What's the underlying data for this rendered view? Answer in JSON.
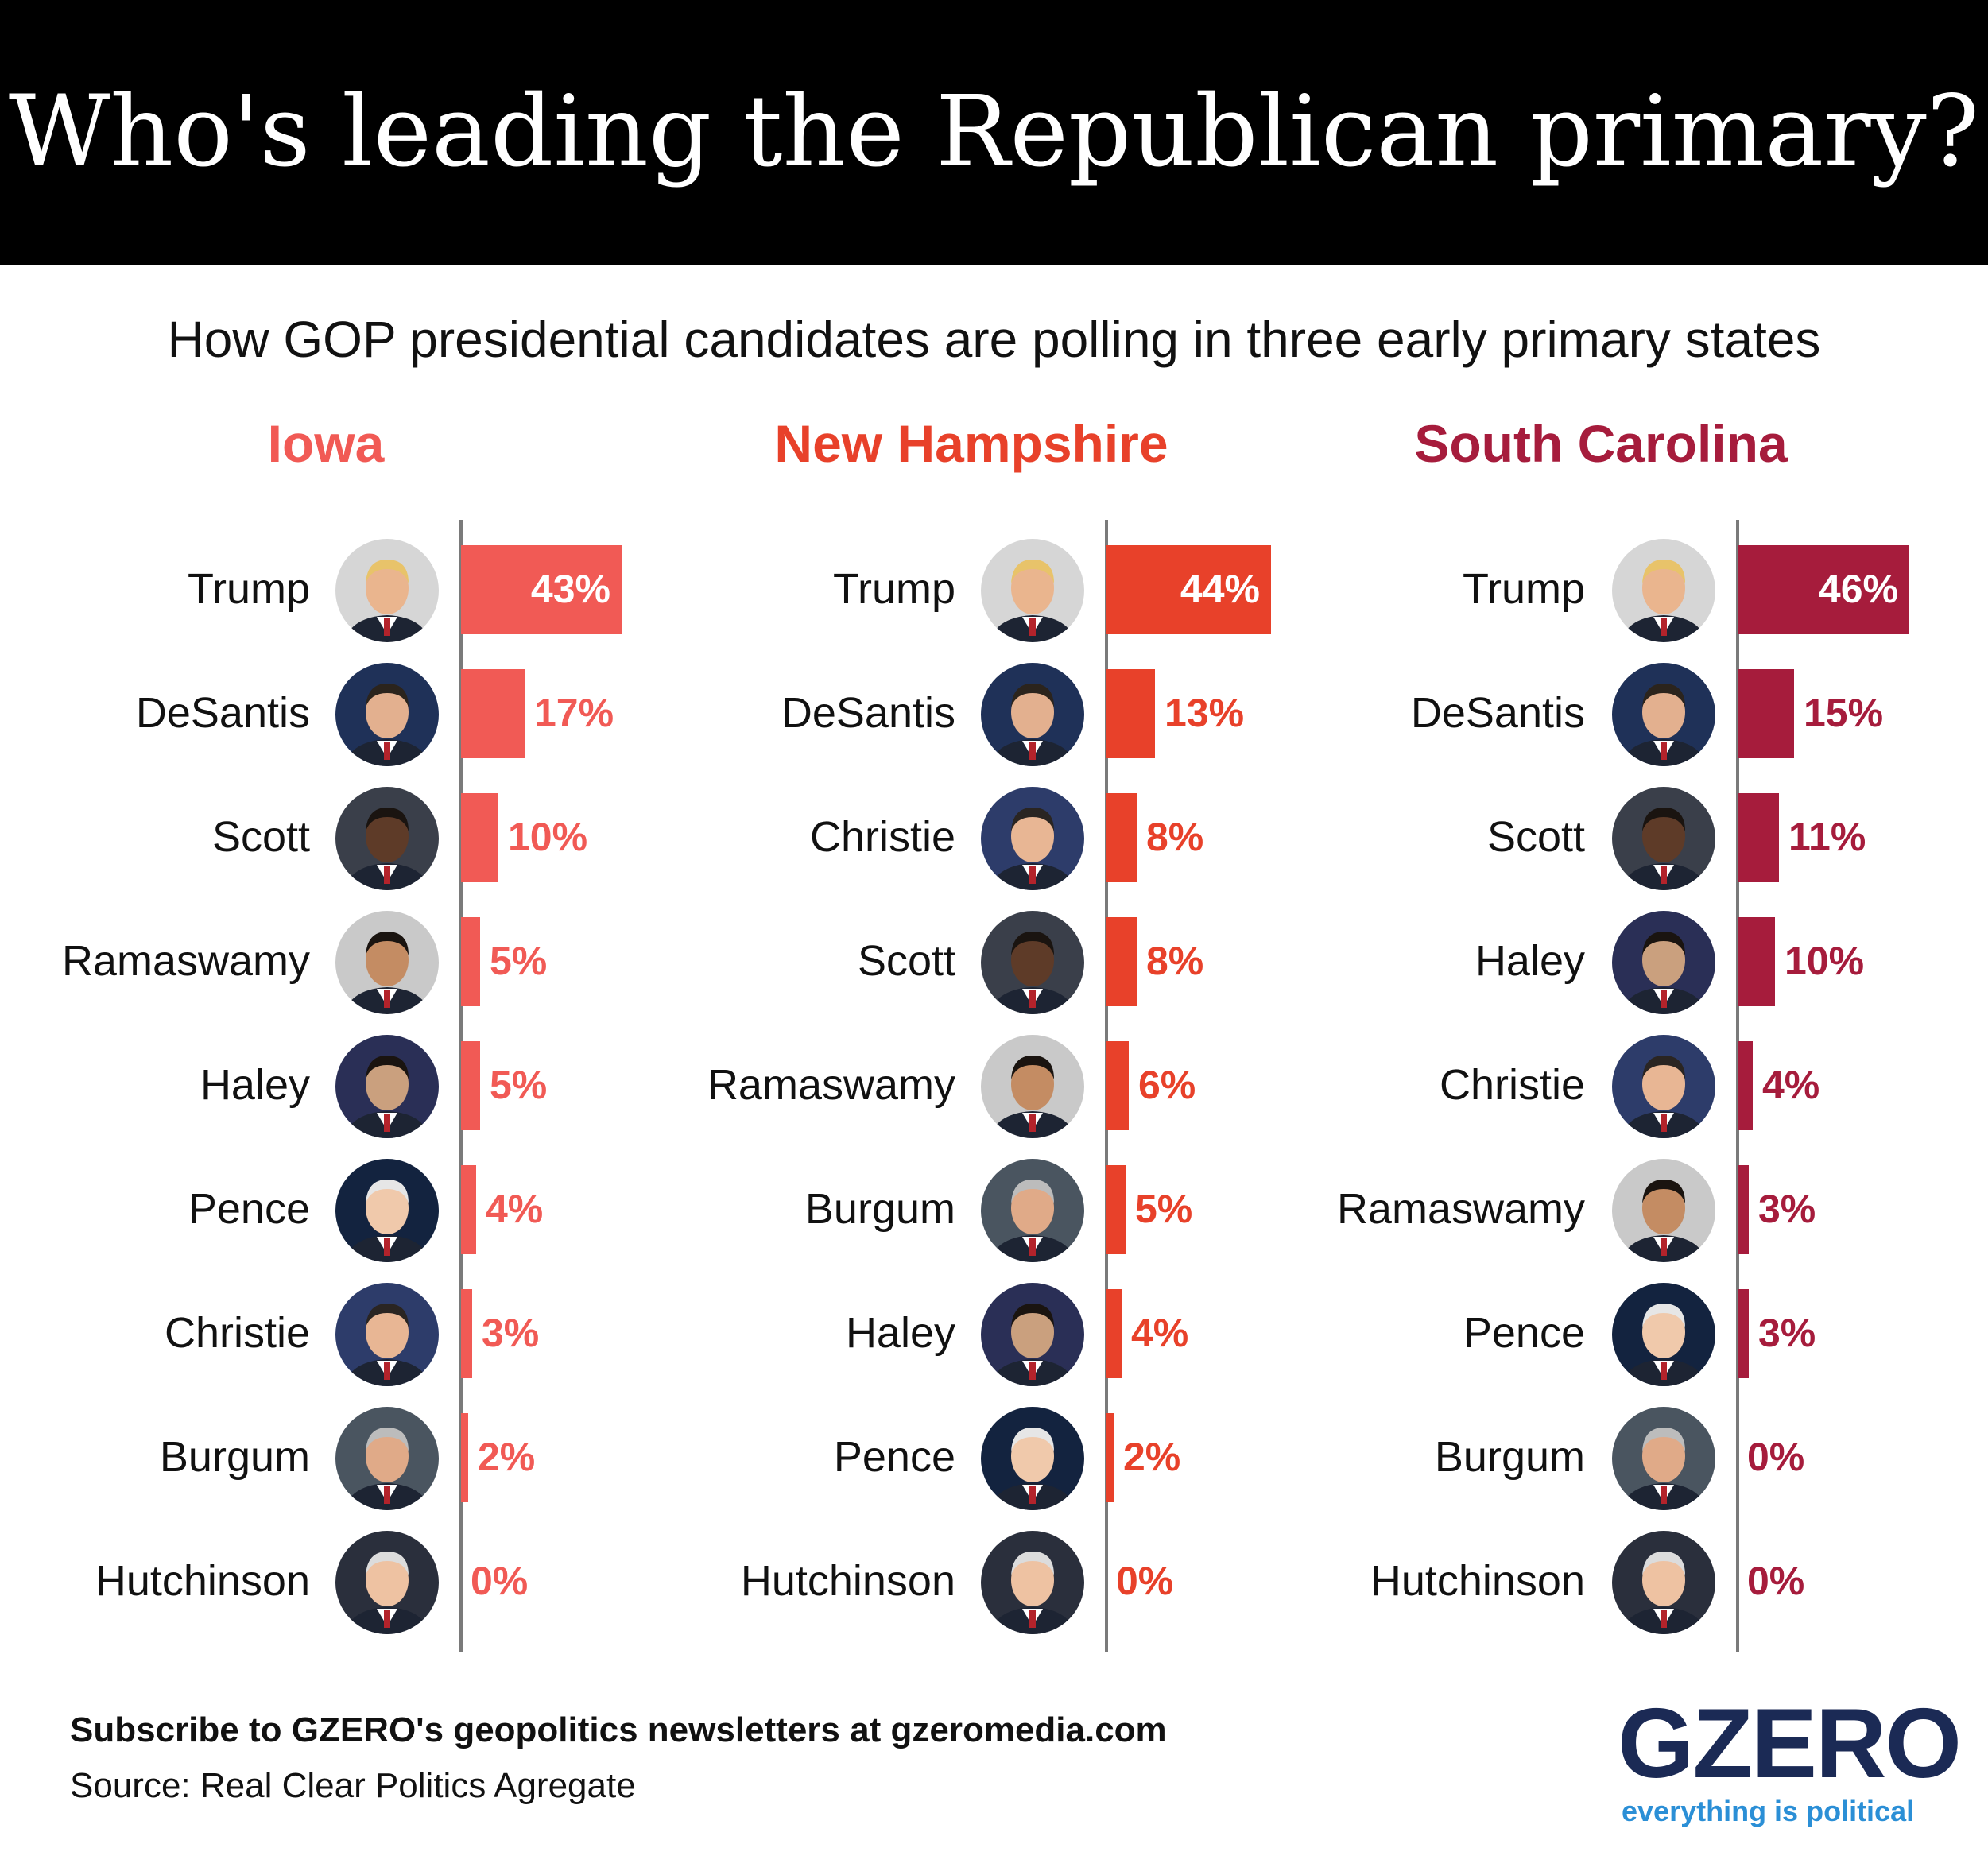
{
  "header": {
    "title": "Who's leading the Republican primary?"
  },
  "subtitle": "How GOP presidential candidates are polling in three early primary states",
  "colors": {
    "iowa": "#f15a55",
    "new_hampshire": "#e8412a",
    "south_carolina": "#a61c3c"
  },
  "chart_data": [
    {
      "type": "bar",
      "orientation": "horizontal",
      "title": "Iowa",
      "categories": [
        "Trump",
        "DeSantis",
        "Scott",
        "Ramaswamy",
        "Haley",
        "Pence",
        "Christie",
        "Burgum",
        "Hutchinson"
      ],
      "values": [
        43,
        17,
        10,
        5,
        5,
        4,
        3,
        2,
        0
      ],
      "labels": [
        "43%",
        "17%",
        "10%",
        "5%",
        "5%",
        "4%",
        "3%",
        "2%",
        "0%"
      ],
      "unit": "%"
    },
    {
      "type": "bar",
      "orientation": "horizontal",
      "title": "New Hampshire",
      "categories": [
        "Trump",
        "DeSantis",
        "Christie",
        "Scott",
        "Ramaswamy",
        "Burgum",
        "Haley",
        "Pence",
        "Hutchinson"
      ],
      "values": [
        44,
        13,
        8,
        8,
        6,
        5,
        4,
        2,
        0
      ],
      "labels": [
        "44%",
        "13%",
        "8%",
        "8%",
        "6%",
        "5%",
        "4%",
        "2%",
        "0%"
      ],
      "unit": "%"
    },
    {
      "type": "bar",
      "orientation": "horizontal",
      "title": "South Carolina",
      "categories": [
        "Trump",
        "DeSantis",
        "Scott",
        "Haley",
        "Christie",
        "Ramaswamy",
        "Pence",
        "Burgum",
        "Hutchinson"
      ],
      "values": [
        46,
        15,
        11,
        10,
        4,
        3,
        3,
        0,
        0
      ],
      "labels": [
        "46%",
        "15%",
        "11%",
        "10%",
        "4%",
        "3%",
        "3%",
        "0%",
        "0%"
      ],
      "unit": "%"
    }
  ],
  "footer": {
    "subscribe": "Subscribe to GZERO's geopolitics newsletters at gzeromedia.com",
    "source": "Source: Real Clear Politics Agregate"
  },
  "logo": {
    "name": "GZERO",
    "tagline": "everything is political"
  }
}
